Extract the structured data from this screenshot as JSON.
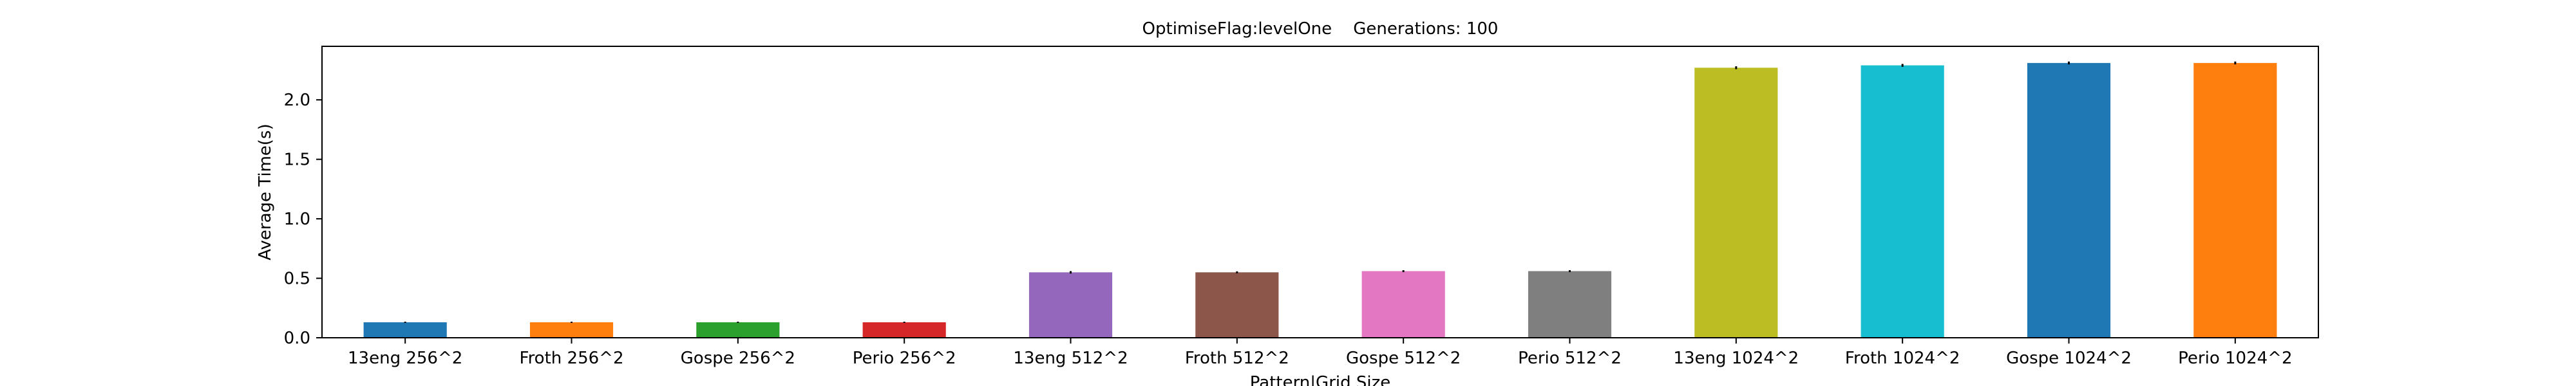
{
  "chart_data": {
    "type": "bar",
    "title": "OptimiseFlag:levelOne    Generations: 100",
    "xlabel": "Pattern|Grid Size",
    "ylabel": "Average Time(s)",
    "ylim": [
      0,
      2.45
    ],
    "yticks": [
      0.0,
      0.5,
      1.0,
      1.5,
      2.0
    ],
    "ytick_labels": [
      "0.0",
      "0.5",
      "1.0",
      "1.5",
      "2.0"
    ],
    "grid": false,
    "legend": "none",
    "error_bars": true,
    "categories": [
      "13eng 256^2",
      "Froth 256^2",
      "Gospe 256^2",
      "Perio 256^2",
      "13eng 512^2",
      "Froth 512^2",
      "Gospe 512^2",
      "Perio 512^2",
      "13eng 1024^2",
      "Froth 1024^2",
      "Gospe 1024^2",
      "Perio 1024^2"
    ],
    "values": [
      0.13,
      0.13,
      0.13,
      0.13,
      0.55,
      0.55,
      0.56,
      0.56,
      2.27,
      2.29,
      2.31,
      2.31
    ],
    "errors": [
      0.005,
      0.005,
      0.005,
      0.005,
      0.01,
      0.008,
      0.008,
      0.008,
      0.012,
      0.012,
      0.012,
      0.012
    ],
    "colors": [
      "#1f77b4",
      "#ff7f0e",
      "#2ca02c",
      "#d62728",
      "#9467bd",
      "#8c564b",
      "#e377c2",
      "#7f7f7f",
      "#bcbd22",
      "#17becf",
      "#1f77b4",
      "#ff7f0e"
    ]
  }
}
